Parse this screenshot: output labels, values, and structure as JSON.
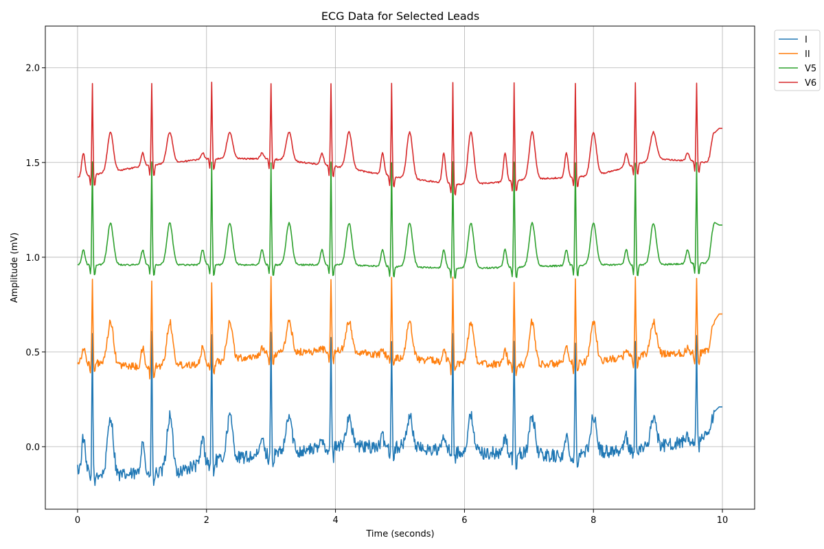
{
  "chart_data": {
    "type": "line",
    "title": "ECG Data for Selected Leads",
    "xlabel": "Time (seconds)",
    "ylabel": "Amplitude (mV)",
    "xlim": [
      -0.5,
      10.5
    ],
    "ylim": [
      -0.33,
      2.22
    ],
    "xticks": [
      0,
      2,
      4,
      6,
      8,
      10
    ],
    "yticks": [
      0.0,
      0.5,
      1.0,
      1.5,
      2.0
    ],
    "xtick_labels": [
      "0",
      "2",
      "4",
      "6",
      "8",
      "10"
    ],
    "ytick_labels": [
      "0.0",
      "0.5",
      "1.0",
      "1.5",
      "2.0"
    ],
    "grid": true,
    "legend_position": "outside-top-right",
    "beats": [
      0.23,
      1.15,
      2.08,
      3.0,
      3.93,
      4.87,
      5.82,
      6.77,
      7.72,
      8.65,
      9.6
    ],
    "series": [
      {
        "name": "I",
        "color": "#1f77b4",
        "baseline_points": [
          [
            0,
            -0.12
          ],
          [
            0.5,
            -0.16
          ],
          [
            1.0,
            -0.14
          ],
          [
            1.5,
            -0.14
          ],
          [
            2.0,
            -0.08
          ],
          [
            2.5,
            -0.06
          ],
          [
            3.0,
            -0.04
          ],
          [
            3.5,
            -0.02
          ],
          [
            4.0,
            0.0
          ],
          [
            5.0,
            0.0
          ],
          [
            6.0,
            -0.03
          ],
          [
            7.0,
            -0.04
          ],
          [
            7.5,
            -0.05
          ],
          [
            8.0,
            -0.03
          ],
          [
            9.0,
            0.0
          ],
          [
            9.8,
            0.05
          ],
          [
            10.0,
            0.21
          ]
        ],
        "r_peak": 0.58,
        "t_wave": 0.16,
        "p_wave": 0.05,
        "noise": 0.035,
        "end_value": 0.21
      },
      {
        "name": "II",
        "color": "#ff7f0e",
        "baseline_points": [
          [
            0,
            0.45
          ],
          [
            1.0,
            0.42
          ],
          [
            2.0,
            0.44
          ],
          [
            3.0,
            0.49
          ],
          [
            4.0,
            0.51
          ],
          [
            5.0,
            0.47
          ],
          [
            6.0,
            0.44
          ],
          [
            7.0,
            0.43
          ],
          [
            8.0,
            0.45
          ],
          [
            9.0,
            0.49
          ],
          [
            9.8,
            0.5
          ],
          [
            10.0,
            0.7
          ]
        ],
        "r_peak": 0.88,
        "t_wave": 0.66,
        "p_wave": 0.52,
        "noise": 0.02,
        "end_value": 0.7
      },
      {
        "name": "V5",
        "color": "#2ca02c",
        "baseline_points": [
          [
            0,
            0.96
          ],
          [
            1.0,
            0.96
          ],
          [
            2.0,
            0.96
          ],
          [
            3.0,
            0.96
          ],
          [
            4.0,
            0.96
          ],
          [
            5.0,
            0.95
          ],
          [
            6.0,
            0.94
          ],
          [
            7.0,
            0.95
          ],
          [
            8.0,
            0.96
          ],
          [
            9.0,
            0.96
          ],
          [
            9.8,
            0.97
          ],
          [
            10.0,
            1.17
          ]
        ],
        "r_peak": 1.5,
        "t_wave": 1.18,
        "p_wave": 1.04,
        "noise": 0.004,
        "end_value": 1.17
      },
      {
        "name": "V6",
        "color": "#d62728",
        "baseline_points": [
          [
            0,
            1.42
          ],
          [
            1.0,
            1.48
          ],
          [
            2.0,
            1.52
          ],
          [
            3.0,
            1.52
          ],
          [
            4.0,
            1.48
          ],
          [
            5.0,
            1.42
          ],
          [
            6.0,
            1.38
          ],
          [
            7.0,
            1.41
          ],
          [
            8.0,
            1.43
          ],
          [
            9.0,
            1.52
          ],
          [
            9.8,
            1.5
          ],
          [
            10.0,
            1.68
          ]
        ],
        "r_peak": 1.92,
        "t_wave": 1.66,
        "p_wave": 1.55,
        "noise": 0.004,
        "end_value": 1.68
      }
    ]
  }
}
